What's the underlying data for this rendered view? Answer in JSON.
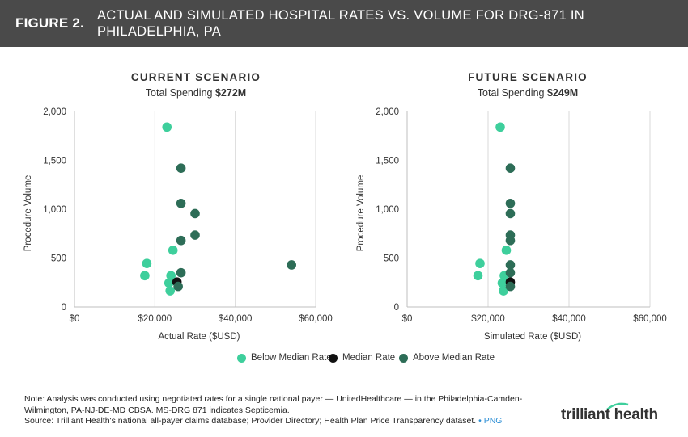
{
  "header": {
    "figure_label": "FIGURE 2.",
    "title": "ACTUAL AND SIMULATED HOSPITAL RATES VS. VOLUME FOR DRG-871 IN PHILADELPHIA, PA"
  },
  "colors": {
    "below": "#3ecf9c",
    "median": "#111111",
    "above": "#2d6d57",
    "grid": "#d9d9d9",
    "header_bg": "#4a4a4a"
  },
  "panels": [
    {
      "title": "CURRENT SCENARIO",
      "subtitle_prefix": "Total Spending ",
      "subtitle_value": "$272M"
    },
    {
      "title": "FUTURE SCENARIO",
      "subtitle_prefix": "Total Spending ",
      "subtitle_value": "$249M"
    }
  ],
  "chart_data": [
    {
      "type": "scatter",
      "title": "CURRENT SCENARIO",
      "xlabel": "Actual Rate ($USD)",
      "ylabel": "Procedure Volume",
      "xlim": [
        0,
        60000
      ],
      "ylim": [
        0,
        2000
      ],
      "x_ticks": [
        "$0",
        "$20,000",
        "$40,000",
        "$60,000"
      ],
      "x_tick_values": [
        0,
        20000,
        40000,
        60000
      ],
      "y_ticks": [
        "0",
        "500",
        "1,000",
        "1,500",
        "2,000"
      ],
      "y_tick_values": [
        0,
        500,
        1000,
        1500,
        2000
      ],
      "series": [
        {
          "name": "Below Median Rate",
          "points": [
            {
              "x": 23000,
              "y": 1840
            },
            {
              "x": 17500,
              "y": 320
            },
            {
              "x": 18000,
              "y": 445
            },
            {
              "x": 24500,
              "y": 580
            },
            {
              "x": 24000,
              "y": 320
            },
            {
              "x": 23500,
              "y": 245
            },
            {
              "x": 23800,
              "y": 165
            }
          ]
        },
        {
          "name": "Median Rate",
          "points": [
            {
              "x": 25500,
              "y": 255
            }
          ]
        },
        {
          "name": "Above Median Rate",
          "points": [
            {
              "x": 26500,
              "y": 1420
            },
            {
              "x": 26500,
              "y": 1060
            },
            {
              "x": 30000,
              "y": 955
            },
            {
              "x": 30000,
              "y": 735
            },
            {
              "x": 26500,
              "y": 680
            },
            {
              "x": 26500,
              "y": 350
            },
            {
              "x": 25800,
              "y": 210
            },
            {
              "x": 54000,
              "y": 430
            }
          ]
        }
      ]
    },
    {
      "type": "scatter",
      "title": "FUTURE SCENARIO",
      "xlabel": "Simulated Rate ($USD)",
      "ylabel": "Procedure Volume",
      "xlim": [
        0,
        60000
      ],
      "ylim": [
        0,
        2000
      ],
      "x_ticks": [
        "$0",
        "$20,000",
        "$40,000",
        "$60,000"
      ],
      "x_tick_values": [
        0,
        20000,
        40000,
        60000
      ],
      "y_ticks": [
        "0",
        "500",
        "1,000",
        "1,500",
        "2,000"
      ],
      "y_tick_values": [
        0,
        500,
        1000,
        1500,
        2000
      ],
      "series": [
        {
          "name": "Below Median Rate",
          "points": [
            {
              "x": 23000,
              "y": 1840
            },
            {
              "x": 17500,
              "y": 320
            },
            {
              "x": 18000,
              "y": 445
            },
            {
              "x": 24500,
              "y": 580
            },
            {
              "x": 24000,
              "y": 320
            },
            {
              "x": 23500,
              "y": 245
            },
            {
              "x": 23800,
              "y": 165
            }
          ]
        },
        {
          "name": "Median Rate",
          "points": [
            {
              "x": 25500,
              "y": 255
            }
          ]
        },
        {
          "name": "Above Median Rate",
          "points": [
            {
              "x": 25500,
              "y": 1420
            },
            {
              "x": 25500,
              "y": 1060
            },
            {
              "x": 25500,
              "y": 955
            },
            {
              "x": 25500,
              "y": 735
            },
            {
              "x": 25500,
              "y": 680
            },
            {
              "x": 25500,
              "y": 350
            },
            {
              "x": 25500,
              "y": 210
            },
            {
              "x": 25500,
              "y": 430
            }
          ]
        }
      ]
    }
  ],
  "legend": {
    "below": "Below Median Rate",
    "median": "Median Rate",
    "above": "Above Median Rate"
  },
  "footer": {
    "note": "Note: Analysis was conducted using negotiated rates for a single national payer — UnitedHealthcare — in the Philadelphia-Camden-Wilmington, PA-NJ-DE-MD CBSA. MS-DRG 871 indicates Septicemia.",
    "source": "Source: Trilliant Health's national all-payer claims database; Provider Directory; Health Plan Price Transparency dataset.",
    "separator": " • ",
    "png_link": "PNG",
    "logo": "trilliant health"
  }
}
